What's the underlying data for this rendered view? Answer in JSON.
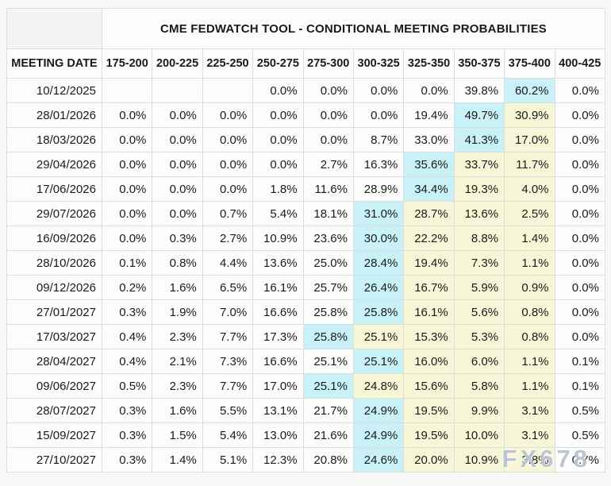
{
  "page": {
    "background": "#f7f7f7"
  },
  "table": {
    "title": "CME FEDWATCH TOOL - CONDITIONAL MEETING PROBABILITIES",
    "date_column_header": "MEETING DATE",
    "rate_column_headers": [
      "175-200",
      "200-225",
      "225-250",
      "250-275",
      "275-300",
      "300-325",
      "325-350",
      "350-375",
      "375-400",
      "400-425"
    ],
    "highlight_colors": {
      "cyan": "#c8f1f8",
      "yellow": "#f7f7d8"
    },
    "rows": [
      {
        "date": "10/12/2025",
        "cells": [
          {
            "text": ""
          },
          {
            "text": ""
          },
          {
            "text": ""
          },
          {
            "text": "0.0%"
          },
          {
            "text": "0.0%"
          },
          {
            "text": "0.0%"
          },
          {
            "text": "0.0%"
          },
          {
            "text": "39.8%"
          },
          {
            "text": "60.2%",
            "highlight": "cyan"
          },
          {
            "text": "0.0%"
          }
        ]
      },
      {
        "date": "28/01/2026",
        "cells": [
          {
            "text": "0.0%"
          },
          {
            "text": "0.0%"
          },
          {
            "text": "0.0%"
          },
          {
            "text": "0.0%"
          },
          {
            "text": "0.0%"
          },
          {
            "text": "0.0%"
          },
          {
            "text": "19.4%"
          },
          {
            "text": "49.7%",
            "highlight": "cyan"
          },
          {
            "text": "30.9%",
            "highlight": "yellow"
          },
          {
            "text": "0.0%"
          }
        ]
      },
      {
        "date": "18/03/2026",
        "cells": [
          {
            "text": "0.0%"
          },
          {
            "text": "0.0%"
          },
          {
            "text": "0.0%"
          },
          {
            "text": "0.0%"
          },
          {
            "text": "0.0%"
          },
          {
            "text": "8.7%"
          },
          {
            "text": "33.0%"
          },
          {
            "text": "41.3%",
            "highlight": "cyan"
          },
          {
            "text": "17.0%",
            "highlight": "yellow"
          },
          {
            "text": "0.0%"
          }
        ]
      },
      {
        "date": "29/04/2026",
        "cells": [
          {
            "text": "0.0%"
          },
          {
            "text": "0.0%"
          },
          {
            "text": "0.0%"
          },
          {
            "text": "0.0%"
          },
          {
            "text": "2.7%"
          },
          {
            "text": "16.3%"
          },
          {
            "text": "35.6%",
            "highlight": "cyan"
          },
          {
            "text": "33.7%",
            "highlight": "yellow"
          },
          {
            "text": "11.7%",
            "highlight": "yellow"
          },
          {
            "text": "0.0%"
          }
        ]
      },
      {
        "date": "17/06/2026",
        "cells": [
          {
            "text": "0.0%"
          },
          {
            "text": "0.0%"
          },
          {
            "text": "0.0%"
          },
          {
            "text": "1.8%"
          },
          {
            "text": "11.6%"
          },
          {
            "text": "28.9%"
          },
          {
            "text": "34.4%",
            "highlight": "cyan"
          },
          {
            "text": "19.3%",
            "highlight": "yellow"
          },
          {
            "text": "4.0%",
            "highlight": "yellow"
          },
          {
            "text": "0.0%"
          }
        ]
      },
      {
        "date": "29/07/2026",
        "cells": [
          {
            "text": "0.0%"
          },
          {
            "text": "0.0%"
          },
          {
            "text": "0.7%"
          },
          {
            "text": "5.4%"
          },
          {
            "text": "18.1%"
          },
          {
            "text": "31.0%",
            "highlight": "cyan"
          },
          {
            "text": "28.7%",
            "highlight": "yellow"
          },
          {
            "text": "13.6%",
            "highlight": "yellow"
          },
          {
            "text": "2.5%",
            "highlight": "yellow"
          },
          {
            "text": "0.0%"
          }
        ]
      },
      {
        "date": "16/09/2026",
        "cells": [
          {
            "text": "0.0%"
          },
          {
            "text": "0.3%"
          },
          {
            "text": "2.7%"
          },
          {
            "text": "10.9%"
          },
          {
            "text": "23.6%"
          },
          {
            "text": "30.0%",
            "highlight": "cyan"
          },
          {
            "text": "22.2%",
            "highlight": "yellow"
          },
          {
            "text": "8.8%",
            "highlight": "yellow"
          },
          {
            "text": "1.4%",
            "highlight": "yellow"
          },
          {
            "text": "0.0%"
          }
        ]
      },
      {
        "date": "28/10/2026",
        "cells": [
          {
            "text": "0.1%"
          },
          {
            "text": "0.8%"
          },
          {
            "text": "4.4%"
          },
          {
            "text": "13.6%"
          },
          {
            "text": "25.0%"
          },
          {
            "text": "28.4%",
            "highlight": "cyan"
          },
          {
            "text": "19.4%",
            "highlight": "yellow"
          },
          {
            "text": "7.3%",
            "highlight": "yellow"
          },
          {
            "text": "1.1%",
            "highlight": "yellow"
          },
          {
            "text": "0.0%"
          }
        ]
      },
      {
        "date": "09/12/2026",
        "cells": [
          {
            "text": "0.2%"
          },
          {
            "text": "1.6%"
          },
          {
            "text": "6.5%"
          },
          {
            "text": "16.1%"
          },
          {
            "text": "25.7%"
          },
          {
            "text": "26.4%",
            "highlight": "cyan"
          },
          {
            "text": "16.7%",
            "highlight": "yellow"
          },
          {
            "text": "5.9%",
            "highlight": "yellow"
          },
          {
            "text": "0.9%",
            "highlight": "yellow"
          },
          {
            "text": "0.0%"
          }
        ]
      },
      {
        "date": "27/01/2027",
        "cells": [
          {
            "text": "0.3%"
          },
          {
            "text": "1.9%"
          },
          {
            "text": "7.0%"
          },
          {
            "text": "16.6%"
          },
          {
            "text": "25.8%"
          },
          {
            "text": "25.8%",
            "highlight": "cyan"
          },
          {
            "text": "16.1%",
            "highlight": "yellow"
          },
          {
            "text": "5.6%",
            "highlight": "yellow"
          },
          {
            "text": "0.8%",
            "highlight": "yellow"
          },
          {
            "text": "0.0%"
          }
        ]
      },
      {
        "date": "17/03/2027",
        "cells": [
          {
            "text": "0.4%"
          },
          {
            "text": "2.3%"
          },
          {
            "text": "7.7%"
          },
          {
            "text": "17.3%"
          },
          {
            "text": "25.8%",
            "highlight": "cyan"
          },
          {
            "text": "25.1%",
            "highlight": "yellow"
          },
          {
            "text": "15.3%",
            "highlight": "yellow"
          },
          {
            "text": "5.3%",
            "highlight": "yellow"
          },
          {
            "text": "0.8%",
            "highlight": "yellow"
          },
          {
            "text": "0.0%"
          }
        ]
      },
      {
        "date": "28/04/2027",
        "cells": [
          {
            "text": "0.4%"
          },
          {
            "text": "2.1%"
          },
          {
            "text": "7.3%"
          },
          {
            "text": "16.6%"
          },
          {
            "text": "25.1%"
          },
          {
            "text": "25.1%",
            "highlight": "cyan"
          },
          {
            "text": "16.0%",
            "highlight": "yellow"
          },
          {
            "text": "6.0%",
            "highlight": "yellow"
          },
          {
            "text": "1.1%",
            "highlight": "yellow"
          },
          {
            "text": "0.1%"
          }
        ]
      },
      {
        "date": "09/06/2027",
        "cells": [
          {
            "text": "0.5%"
          },
          {
            "text": "2.3%"
          },
          {
            "text": "7.7%"
          },
          {
            "text": "17.0%"
          },
          {
            "text": "25.1%",
            "highlight": "cyan"
          },
          {
            "text": "24.8%",
            "highlight": "yellow"
          },
          {
            "text": "15.6%",
            "highlight": "yellow"
          },
          {
            "text": "5.8%",
            "highlight": "yellow"
          },
          {
            "text": "1.1%",
            "highlight": "yellow"
          },
          {
            "text": "0.1%"
          }
        ]
      },
      {
        "date": "28/07/2027",
        "cells": [
          {
            "text": "0.3%"
          },
          {
            "text": "1.6%"
          },
          {
            "text": "5.5%"
          },
          {
            "text": "13.1%"
          },
          {
            "text": "21.7%"
          },
          {
            "text": "24.9%",
            "highlight": "cyan"
          },
          {
            "text": "19.5%",
            "highlight": "yellow"
          },
          {
            "text": "9.9%",
            "highlight": "yellow"
          },
          {
            "text": "3.1%",
            "highlight": "yellow"
          },
          {
            "text": "0.5%"
          }
        ]
      },
      {
        "date": "15/09/2027",
        "cells": [
          {
            "text": "0.3%"
          },
          {
            "text": "1.5%"
          },
          {
            "text": "5.4%"
          },
          {
            "text": "13.0%"
          },
          {
            "text": "21.6%"
          },
          {
            "text": "24.9%",
            "highlight": "cyan"
          },
          {
            "text": "19.5%",
            "highlight": "yellow"
          },
          {
            "text": "10.0%",
            "highlight": "yellow"
          },
          {
            "text": "3.1%",
            "highlight": "yellow"
          },
          {
            "text": "0.5%"
          }
        ]
      },
      {
        "date": "27/10/2027",
        "cells": [
          {
            "text": "0.3%"
          },
          {
            "text": "1.4%"
          },
          {
            "text": "5.1%"
          },
          {
            "text": "12.3%"
          },
          {
            "text": "20.8%"
          },
          {
            "text": "24.6%",
            "highlight": "cyan"
          },
          {
            "text": "20.0%",
            "highlight": "yellow"
          },
          {
            "text": "10.9%",
            "highlight": "yellow"
          },
          {
            "text": "3.8%",
            "highlight": "yellow"
          },
          {
            "text": "0.7%"
          }
        ]
      }
    ]
  },
  "watermark": {
    "text": "FX678"
  }
}
